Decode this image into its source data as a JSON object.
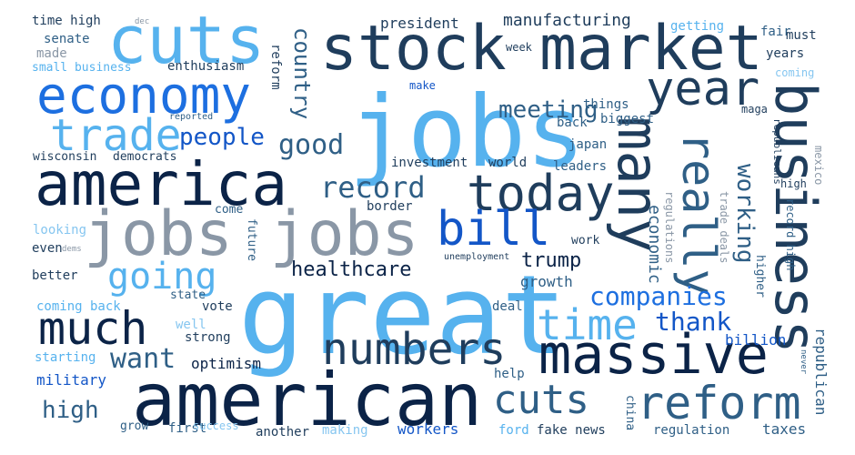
{
  "colors": {
    "navy": "#0b2347",
    "dark_slate": "#1f3d5c",
    "steel": "#2f5f86",
    "slate_gray": "#8a97a6",
    "royal": "#1356c7",
    "bright_blue": "#1d6fe0",
    "sky": "#56b2ee",
    "light_sky": "#86c6f0"
  },
  "words": {
    "jobs": "jobs",
    "great": "great",
    "american": "american",
    "america": "america",
    "cuts_top": "cuts",
    "stock": "stock",
    "market": "market",
    "economy": "economy",
    "jobs_jobs": "jobs jobs",
    "many": "many",
    "business": "business",
    "massive": "massive",
    "today": "today",
    "year": "year",
    "trade": "trade",
    "numbers": "numbers",
    "much": "much",
    "reform": "reform",
    "cuts_bottom": "cuts",
    "bill": "bill",
    "really": "really",
    "time": "time",
    "going": "going",
    "record": "record",
    "want": "want",
    "good": "good",
    "people": "people",
    "meeting": "meeting",
    "companies": "companies",
    "thank": "thank",
    "healthcare": "healthcare",
    "trump": "trump",
    "high": "high",
    "working": "working",
    "country": "country",
    "economic": "economic",
    "manufacturing": "manufacturing",
    "president": "president",
    "billion": "billion",
    "optimism": "optimism",
    "military": "military",
    "growth": "growth",
    "republican": "republican",
    "senate": "senate",
    "made": "made",
    "enthusiasm": "enthusiasm",
    "small_business": "small business",
    "time_high": "time high",
    "democrats": "democrats",
    "wisconsin": "wisconsin",
    "investment": "investment",
    "world": "world",
    "leaders": "leaders",
    "japan": "japan",
    "things": "things",
    "biggest": "biggest",
    "back": "back",
    "make": "make",
    "reported": "reported",
    "week": "week",
    "getting": "getting",
    "fair": "fair",
    "must": "must",
    "years": "years",
    "coming": "coming",
    "maga": "maga",
    "republicans": "republicans",
    "high_right": "high",
    "mexico": "mexico",
    "regulations": "regulations",
    "trade_deals": "trade deals",
    "record_high": "record high",
    "higher": "higher",
    "border": "border",
    "come": "come",
    "future": "future",
    "looking": "looking",
    "even": "even",
    "dems": "dems",
    "better": "better",
    "unemployment": "unemployment",
    "work": "work",
    "coming_back": "coming back",
    "state": "state",
    "vote": "vote",
    "deal": "deal",
    "well": "well",
    "strong": "strong",
    "starting": "starting",
    "help": "help",
    "china": "china",
    "grow": "grow",
    "first": "first",
    "success": "success",
    "another": "another",
    "making": "making",
    "workers": "workers",
    "ford": "ford",
    "fake_news": "fake news",
    "regulation": "regulation",
    "taxes": "taxes",
    "never": "never",
    "reform_small": "reform",
    "dec": "dec"
  }
}
